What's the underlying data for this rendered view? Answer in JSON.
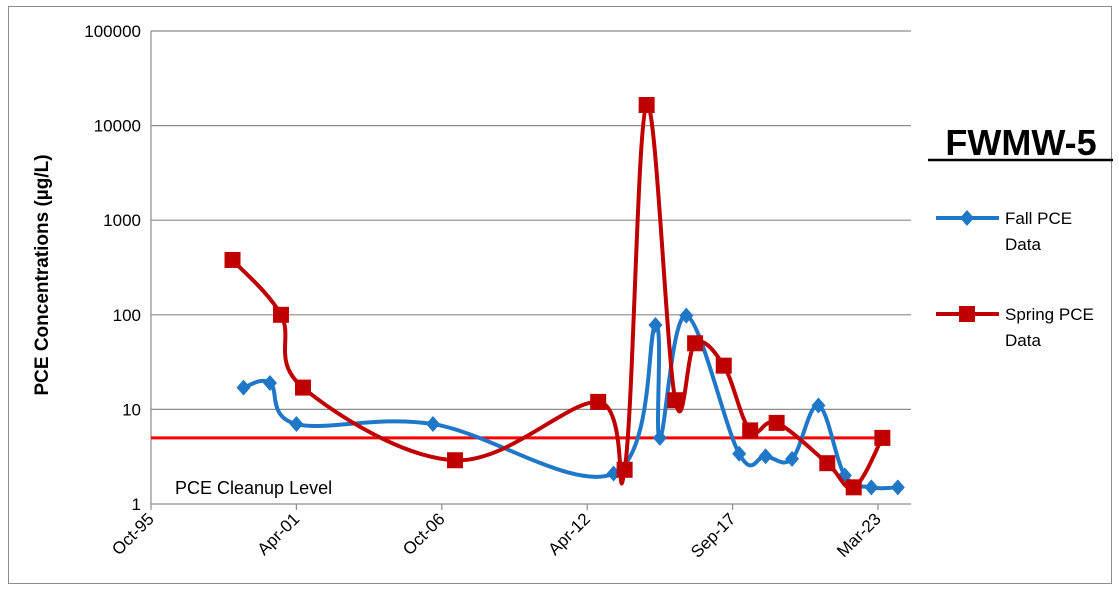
{
  "chart_data": {
    "type": "line",
    "title": "FWMW-5",
    "ylabel": "PCE Concentrations  (µg/L)",
    "xlabel": "",
    "y_scale": "log",
    "ylim": [
      1,
      100000
    ],
    "y_ticks": [
      "1",
      "10",
      "100",
      "1000",
      "10000",
      "100000"
    ],
    "x_ticks": [
      "Oct-95",
      "Apr-01",
      "Oct-06",
      "Apr-12",
      "Sep-17",
      "Mar-23"
    ],
    "grid": "horizontal",
    "legend_position": "right",
    "series": [
      {
        "name": "Fall PCE Data",
        "color": "#1f77c8",
        "marker": "diamond",
        "points": [
          {
            "x": "1999-04",
            "y": 17
          },
          {
            "x": "2000-04",
            "y": 19
          },
          {
            "x": "2001-04",
            "y": 7
          },
          {
            "x": "2006-06",
            "y": 7
          },
          {
            "x": "2013-04",
            "y": 2.1
          },
          {
            "x": "2014-11",
            "y": 78
          },
          {
            "x": "2015-01",
            "y": 5
          },
          {
            "x": "2016-01",
            "y": 98
          },
          {
            "x": "2018-01",
            "y": 3.4
          },
          {
            "x": "2019-01",
            "y": 3.2
          },
          {
            "x": "2020-01",
            "y": 3.0
          },
          {
            "x": "2021-01",
            "y": 11
          },
          {
            "x": "2022-01",
            "y": 2.0
          },
          {
            "x": "2023-01",
            "y": 1.5
          },
          {
            "x": "2024-01",
            "y": 1.5
          }
        ]
      },
      {
        "name": "Spring PCE Data",
        "color": "#c00000",
        "marker": "square",
        "points": [
          {
            "x": "1998-11",
            "y": 380
          },
          {
            "x": "2000-09",
            "y": 100
          },
          {
            "x": "2001-07",
            "y": 17
          },
          {
            "x": "2007-04",
            "y": 2.9
          },
          {
            "x": "2012-09",
            "y": 12
          },
          {
            "x": "2013-09",
            "y": 2.3
          },
          {
            "x": "2014-07",
            "y": 16500
          },
          {
            "x": "2015-08",
            "y": 12.5
          },
          {
            "x": "2016-05",
            "y": 50
          },
          {
            "x": "2017-06",
            "y": 29
          },
          {
            "x": "2018-06",
            "y": 6
          },
          {
            "x": "2019-06",
            "y": 7.2
          },
          {
            "x": "2021-05",
            "y": 2.7
          },
          {
            "x": "2022-05",
            "y": 1.5
          },
          {
            "x": "2023-06",
            "y": 5
          }
        ]
      }
    ],
    "reference_line": {
      "label": "PCE Cleanup Level",
      "y": 5,
      "x_start": "1995-10",
      "x_end": "2023-06",
      "color": "#ff0000"
    }
  }
}
